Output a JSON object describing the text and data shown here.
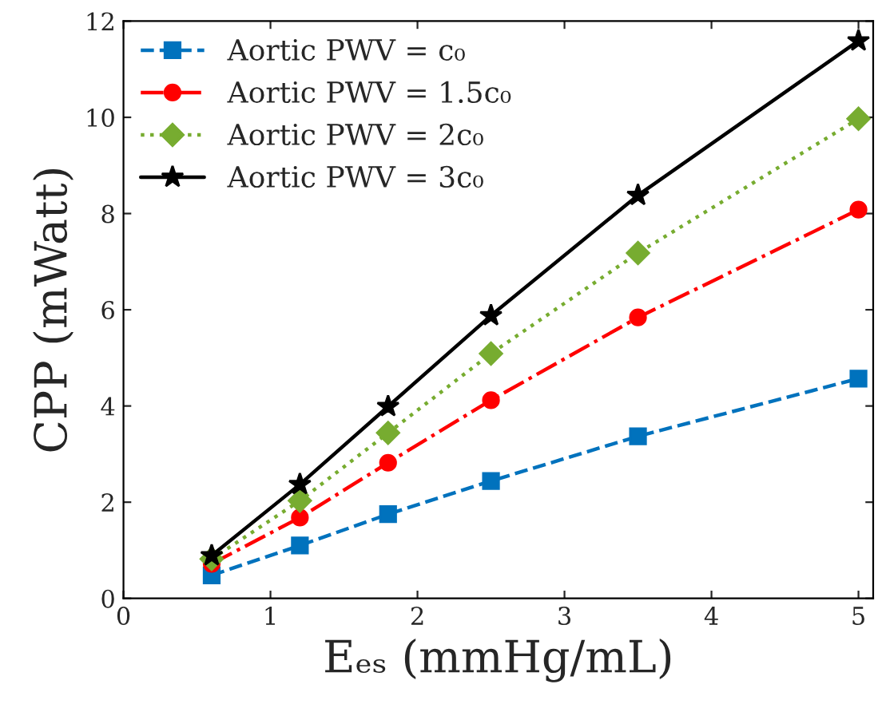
{
  "chart_data": {
    "type": "line",
    "xlabel": "Eₑₛ (mmHg/mL)",
    "ylabel": "CPP (mWatt)",
    "x": [
      0.6,
      1.2,
      1.8,
      2.5,
      3.5,
      5
    ],
    "series": [
      {
        "name": "Aortic PWV = c₀",
        "color": "#0072bd",
        "marker": "square",
        "line_style": "dashed",
        "values": [
          0.48,
          1.1,
          1.75,
          2.44,
          3.37,
          4.57
        ]
      },
      {
        "name": "Aortic PWV = 1.5c₀",
        "color": "#ff0000",
        "marker": "circle",
        "line_style": "dashdot",
        "values": [
          0.72,
          1.68,
          2.82,
          4.12,
          5.84,
          8.08
        ]
      },
      {
        "name": "Aortic PWV = 2c₀",
        "color": "#77ac30",
        "marker": "diamond",
        "line_style": "dotted",
        "values": [
          0.82,
          2.03,
          3.44,
          5.09,
          7.18,
          9.97
        ]
      },
      {
        "name": "Aortic PWV = 3c₀",
        "color": "#000000",
        "marker": "star",
        "line_style": "solid",
        "values": [
          0.89,
          2.37,
          3.99,
          5.88,
          8.38,
          11.59
        ]
      }
    ],
    "xlim": [
      0,
      5.1
    ],
    "ylim": [
      0,
      12
    ],
    "xticks": [
      0,
      1,
      2,
      3,
      4,
      5
    ],
    "yticks": [
      0,
      2,
      4,
      6,
      8,
      10,
      12
    ],
    "grid": false,
    "legend": "top left"
  }
}
